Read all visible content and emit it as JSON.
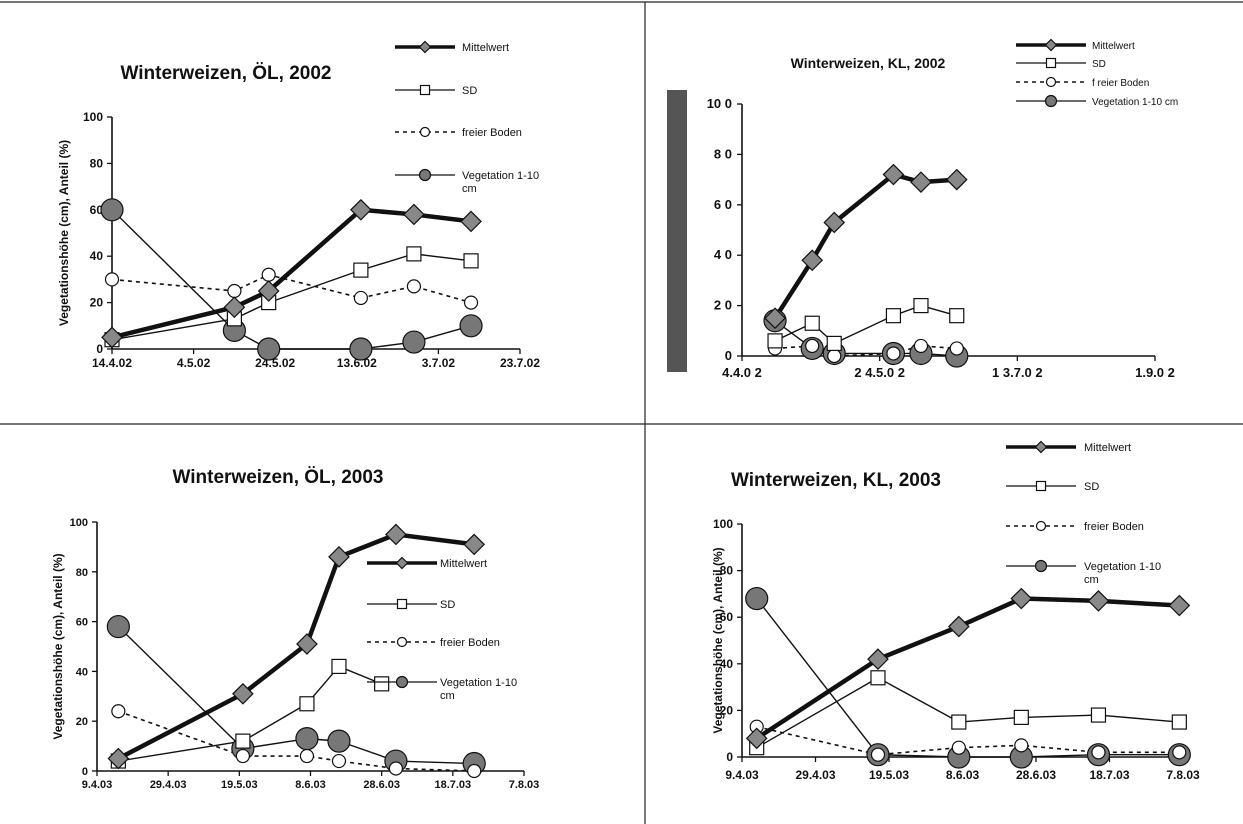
{
  "chart_data": [
    {
      "type": "line",
      "title": "Winterweizen, ÖL, 2002",
      "xlabel": "",
      "ylabel": "Vegetationshöhe (cm), Anteil (%)",
      "ylim": [
        0,
        100
      ],
      "yticks": [
        "0",
        "20",
        "40",
        "60",
        "80",
        "100"
      ],
      "xtick_labels": [
        "14.4.02",
        "4.5.02",
        "24.5.02",
        "13.6.02",
        "3.7.02",
        "23.7.02"
      ],
      "grid": false,
      "legend_position": "top-right",
      "series": [
        {
          "name": "Mittelwert",
          "style": "mean",
          "points": [
            [
              0,
              5
            ],
            [
              1.5,
              18
            ],
            [
              1.92,
              25
            ],
            [
              3.05,
              60
            ],
            [
              3.7,
              58
            ],
            [
              4.4,
              55
            ]
          ]
        },
        {
          "name": "SD",
          "style": "sd",
          "points": [
            [
              0,
              4
            ],
            [
              1.5,
              13
            ],
            [
              1.92,
              20
            ],
            [
              3.05,
              34
            ],
            [
              3.7,
              41
            ],
            [
              4.4,
              38
            ]
          ]
        },
        {
          "name": "freier Boden",
          "style": "soil",
          "points": [
            [
              0,
              30
            ],
            [
              1.5,
              25
            ],
            [
              1.92,
              32
            ],
            [
              3.05,
              22
            ],
            [
              3.7,
              27
            ],
            [
              4.4,
              20
            ]
          ]
        },
        {
          "name": "Vegetation 1-10 cm",
          "legend_lines": [
            "Vegetation 1-10",
            "cm"
          ],
          "style": "veg",
          "points": [
            [
              0,
              60
            ],
            [
              1.5,
              8
            ],
            [
              1.92,
              0
            ],
            [
              3.05,
              0
            ],
            [
              3.7,
              3
            ],
            [
              4.4,
              10
            ]
          ]
        }
      ]
    },
    {
      "type": "line",
      "title": "Winterweizen, KL, 2002",
      "xlabel": "",
      "ylabel": "",
      "ylim": [
        0,
        100
      ],
      "yticks": [
        "0",
        "2 0",
        "4 0",
        "6 0",
        "8 0",
        "10 0"
      ],
      "xtick_labels": [
        "4.4.0 2",
        "2 4.5.0 2",
        "1 3.7.0 2",
        "1.9.0 2"
      ],
      "grid": false,
      "legend_position": "top-right",
      "series": [
        {
          "name": "Mittelwert",
          "style": "mean",
          "points": [
            [
              0.24,
              15
            ],
            [
              0.51,
              38
            ],
            [
              0.67,
              53
            ],
            [
              1.1,
              72
            ],
            [
              1.3,
              69
            ],
            [
              1.56,
              70
            ]
          ]
        },
        {
          "name": "SD",
          "style": "sd",
          "points": [
            [
              0.24,
              6
            ],
            [
              0.51,
              13
            ],
            [
              0.67,
              5
            ],
            [
              1.1,
              16
            ],
            [
              1.3,
              20
            ],
            [
              1.56,
              16
            ]
          ]
        },
        {
          "name": "f reier Boden",
          "style": "soil",
          "points": [
            [
              0.24,
              3
            ],
            [
              0.51,
              4
            ],
            [
              0.67,
              0
            ],
            [
              1.1,
              1
            ],
            [
              1.3,
              4
            ],
            [
              1.56,
              3
            ]
          ]
        },
        {
          "name": "Vegetation 1-10 cm",
          "legend_lines": [
            "Vegetation 1-10 cm"
          ],
          "style": "veg",
          "points": [
            [
              0.24,
              14
            ],
            [
              0.51,
              3
            ],
            [
              0.67,
              1
            ],
            [
              1.1,
              1
            ],
            [
              1.3,
              1
            ],
            [
              1.56,
              0
            ]
          ]
        }
      ]
    },
    {
      "type": "line",
      "title": "Winterweizen, ÖL, 2003",
      "xlabel": "",
      "ylabel": "Vegetationshöhe (cm), Anteil (%)",
      "ylim": [
        0,
        100
      ],
      "yticks": [
        "0",
        "20",
        "40",
        "60",
        "80",
        "100"
      ],
      "xtick_labels": [
        "9.4.03",
        "29.4.03",
        "19.5.03",
        "8.6.03",
        "28.6.03",
        "18.7.03",
        "7.8.03"
      ],
      "grid": false,
      "legend_position": "right",
      "series": [
        {
          "name": "Mittelwert",
          "style": "mean",
          "points": [
            [
              0.3,
              5
            ],
            [
              2.05,
              31
            ],
            [
              2.95,
              51
            ],
            [
              3.4,
              86
            ],
            [
              4.2,
              95
            ],
            [
              5.3,
              91
            ]
          ]
        },
        {
          "name": "SD",
          "style": "sd",
          "points": [
            [
              0.3,
              4
            ],
            [
              2.05,
              12
            ],
            [
              2.95,
              27
            ],
            [
              3.4,
              42
            ],
            [
              4.0,
              35
            ]
          ]
        },
        {
          "name": "freier Boden",
          "style": "soil",
          "points": [
            [
              0.3,
              24
            ],
            [
              2.05,
              6
            ],
            [
              2.95,
              6
            ],
            [
              3.4,
              4
            ],
            [
              4.2,
              1
            ],
            [
              5.3,
              0
            ]
          ]
        },
        {
          "name": "Vegetation 1-10 cm",
          "legend_lines": [
            "Vegetation 1-10",
            "cm"
          ],
          "style": "veg",
          "points": [
            [
              0.3,
              58
            ],
            [
              2.05,
              9
            ],
            [
              2.95,
              13
            ],
            [
              3.4,
              12
            ],
            [
              4.2,
              4
            ],
            [
              5.3,
              3
            ]
          ]
        }
      ]
    },
    {
      "type": "line",
      "title": "Winterweizen, KL, 2003",
      "xlabel": "",
      "ylabel": "Vegetationshöhe (cm), Anteil (%)",
      "ylim": [
        0,
        100
      ],
      "yticks": [
        "0",
        "20",
        "40",
        "60",
        "80",
        "100"
      ],
      "xtick_labels": [
        "9.4.03",
        "29.4.03",
        "19.5.03",
        "8.6.03",
        "28.6.03",
        "18.7.03",
        "7.8.03"
      ],
      "grid": false,
      "legend_position": "top-right",
      "series": [
        {
          "name": "Mittelwert",
          "style": "mean",
          "points": [
            [
              0.2,
              8
            ],
            [
              1.85,
              42
            ],
            [
              2.95,
              56
            ],
            [
              3.8,
              68
            ],
            [
              4.85,
              67
            ],
            [
              5.95,
              65
            ]
          ]
        },
        {
          "name": "SD",
          "style": "sd",
          "points": [
            [
              0.2,
              4
            ],
            [
              1.85,
              34
            ],
            [
              2.95,
              15
            ],
            [
              3.8,
              17
            ],
            [
              4.85,
              18
            ],
            [
              5.95,
              15
            ]
          ]
        },
        {
          "name": "freier Boden",
          "style": "soil",
          "points": [
            [
              0.2,
              13
            ],
            [
              1.85,
              1
            ],
            [
              2.95,
              4
            ],
            [
              3.8,
              5
            ],
            [
              4.85,
              2
            ],
            [
              5.95,
              2
            ]
          ]
        },
        {
          "name": "Vegetation 1-10 cm",
          "legend_lines": [
            "Vegetation 1-10",
            "cm"
          ],
          "style": "veg",
          "points": [
            [
              0.2,
              68
            ],
            [
              1.85,
              1
            ],
            [
              2.95,
              0
            ],
            [
              3.8,
              0
            ],
            [
              4.85,
              1
            ],
            [
              5.95,
              1
            ]
          ]
        }
      ]
    }
  ]
}
